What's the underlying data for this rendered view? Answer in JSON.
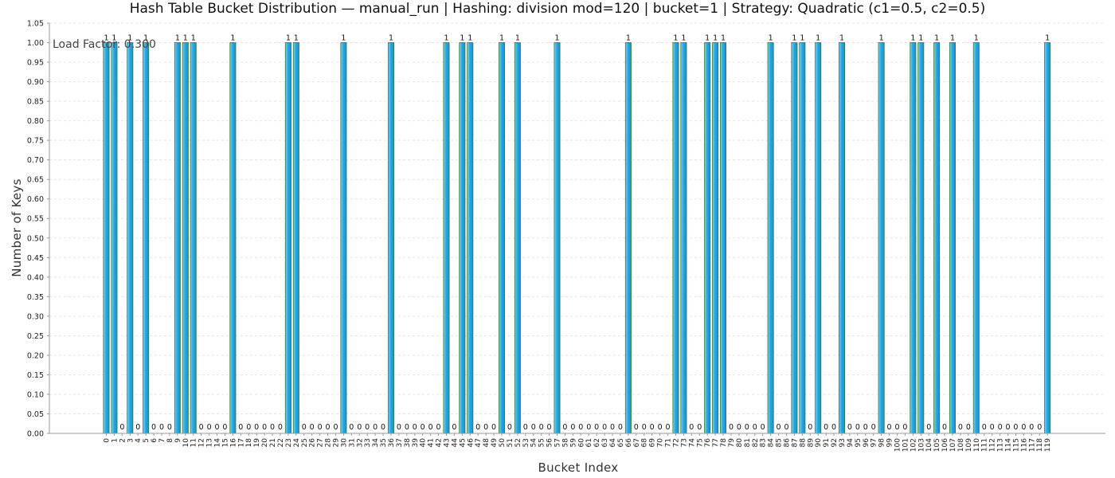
{
  "chart_data": {
    "type": "bar",
    "title": "Hash Table Bucket Distribution — manual_run | Hashing: division mod=120 | bucket=1 | Strategy: Quadratic (c1=0.5, c2=0.5)",
    "xlabel": "Bucket Index",
    "ylabel": "Number of Keys",
    "annotation": "Load Factor: 0.300",
    "ylim": [
      0,
      1.05
    ],
    "ytick_step": 0.05,
    "grid": true,
    "categories": [
      "0",
      "1",
      "2",
      "3",
      "4",
      "5",
      "6",
      "7",
      "8",
      "9",
      "10",
      "11",
      "12",
      "13",
      "14",
      "15",
      "16",
      "17",
      "18",
      "19",
      "20",
      "21",
      "22",
      "23",
      "24",
      "25",
      "26",
      "27",
      "28",
      "29",
      "30",
      "31",
      "32",
      "33",
      "34",
      "35",
      "36",
      "37",
      "38",
      "39",
      "40",
      "41",
      "42",
      "43",
      "44",
      "45",
      "46",
      "47",
      "48",
      "49",
      "50",
      "51",
      "52",
      "53",
      "54",
      "55",
      "56",
      "57",
      "58",
      "59",
      "60",
      "61",
      "62",
      "63",
      "64",
      "65",
      "66",
      "67",
      "68",
      "69",
      "70",
      "71",
      "72",
      "73",
      "74",
      "75",
      "76",
      "77",
      "78",
      "79",
      "80",
      "81",
      "82",
      "83",
      "84",
      "85",
      "86",
      "87",
      "88",
      "89",
      "90",
      "91",
      "92",
      "93",
      "94",
      "95",
      "96",
      "97",
      "98",
      "99",
      "100",
      "101",
      "102",
      "103",
      "104",
      "105",
      "106",
      "107",
      "108",
      "109",
      "110",
      "111",
      "112",
      "113",
      "114",
      "115",
      "116",
      "117",
      "118",
      "119"
    ],
    "values": [
      1,
      1,
      0,
      1,
      0,
      1,
      0,
      0,
      0,
      1,
      1,
      1,
      0,
      0,
      0,
      0,
      1,
      0,
      0,
      0,
      0,
      0,
      0,
      1,
      1,
      0,
      0,
      0,
      0,
      0,
      1,
      0,
      0,
      0,
      0,
      0,
      1,
      0,
      0,
      0,
      0,
      0,
      0,
      1,
      0,
      1,
      1,
      0,
      0,
      0,
      1,
      0,
      1,
      0,
      0,
      0,
      0,
      1,
      0,
      0,
      0,
      0,
      0,
      0,
      0,
      0,
      1,
      0,
      0,
      0,
      0,
      0,
      1,
      1,
      0,
      0,
      1,
      1,
      1,
      0,
      0,
      0,
      0,
      0,
      1,
      0,
      0,
      1,
      1,
      0,
      1,
      0,
      0,
      1,
      0,
      0,
      0,
      0,
      1,
      0,
      0,
      0,
      1,
      1,
      0,
      1,
      0,
      1,
      0,
      0,
      1,
      0,
      0,
      0,
      0,
      0,
      0,
      0,
      0,
      1
    ],
    "bar_color": "#29a8e0",
    "bar_edge_color": "#2e7d32"
  }
}
